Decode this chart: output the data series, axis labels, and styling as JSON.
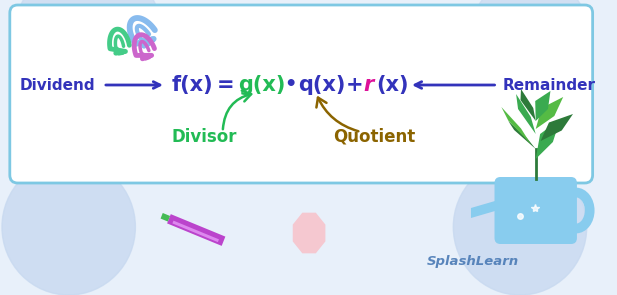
{
  "bg_color": "#e8f0fa",
  "box_color": "#ffffff",
  "box_border_color": "#7ec8e3",
  "colors": {
    "fx": "#3333bb",
    "eq": "#3333bb",
    "gx": "#22bb55",
    "dot": "#3333bb",
    "qx": "#3333bb",
    "plus": "#3333bb",
    "r": "#dd1199",
    "px": "#3333bb",
    "dividend_label": "#3333bb",
    "remainder_label": "#3333bb",
    "divisor_label": "#22bb55",
    "divisor_arrow": "#22bb55",
    "quotient_label": "#8B6400",
    "quotient_arrow": "#8B6400",
    "splashlearn": "#4a7ab5",
    "arrow_color": "#3333bb",
    "blob": "#c8d9f0",
    "clip_blue": "#88bbee",
    "clip_green": "#44cc88",
    "clip_pink": "#cc66cc",
    "pen_body": "#bb44cc",
    "pen_light": "#dd88ee",
    "pen_tip": "#44bb55",
    "octagon": "#f5c8d0",
    "can": "#88ccee",
    "plant_dark": "#2d7a3a",
    "plant_mid": "#3aaa50",
    "plant_light": "#55bb44"
  },
  "labels": {
    "dividend": "Dividend",
    "remainder": "Remainder",
    "divisor": "Divisor",
    "quotient": "Quotient",
    "splashlearn": "SplashLearn"
  },
  "figsize": [
    6.17,
    2.95
  ],
  "dpi": 100
}
